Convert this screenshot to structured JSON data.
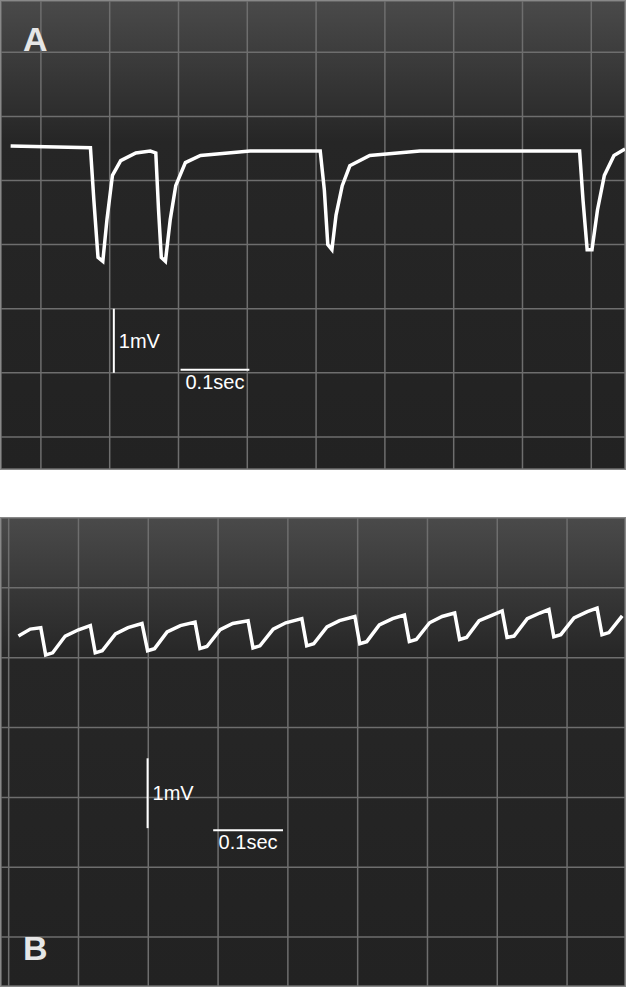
{
  "chart_data": [
    {
      "type": "line",
      "title": "A",
      "color": "#ffffff",
      "grid": true,
      "tick_labels": false,
      "x": [
        -0.044,
        0.072,
        0.077,
        0.083,
        0.09,
        0.096,
        0.104,
        0.116,
        0.138,
        0.159,
        0.167,
        0.171,
        0.175,
        0.181,
        0.188,
        0.196,
        0.21,
        0.232,
        0.304,
        0.406,
        0.412,
        0.417,
        0.423,
        0.429,
        0.438,
        0.449,
        0.478,
        0.551,
        0.783,
        0.788,
        0.794,
        0.801,
        0.809,
        0.819,
        0.833,
        0.849
      ],
      "values": [
        0.54,
        0.51,
        -0.31,
        -1.2,
        -1.26,
        -0.61,
        0.08,
        0.31,
        0.43,
        0.46,
        0.43,
        -0.46,
        -1.2,
        -1.26,
        -0.61,
        -0.08,
        0.28,
        0.39,
        0.46,
        0.46,
        -0.15,
        -1.0,
        -1.08,
        -0.54,
        -0.08,
        0.23,
        0.39,
        0.46,
        0.46,
        -0.31,
        -1.08,
        -1.08,
        -0.46,
        0.08,
        0.39,
        0.49
      ],
      "xlim": [
        -0.058,
        0.849
      ],
      "ylim": [
        -4.5,
        2.8
      ],
      "xticks": [
        0,
        0.1,
        0.2,
        0.3,
        0.4,
        0.5,
        0.6,
        0.7,
        0.8
      ],
      "yticks": [
        -4,
        -3,
        -2,
        -1,
        0,
        1,
        2
      ],
      "scale_bars": [
        {
          "label": "1mV",
          "axis": "y",
          "length": 1,
          "x": 0.106,
          "y": -3.0
        },
        {
          "label": "0.1sec",
          "axis": "x",
          "length": 0.1,
          "x": 0.203,
          "y": -2.95
        }
      ]
    },
    {
      "type": "line",
      "title": "B",
      "color": "#ffffff",
      "grid": true,
      "tick_labels": false,
      "x": [
        0.014,
        0.031,
        0.046,
        0.053,
        0.063,
        0.081,
        0.1,
        0.117,
        0.124,
        0.134,
        0.153,
        0.171,
        0.191,
        0.199,
        0.209,
        0.227,
        0.246,
        0.267,
        0.274,
        0.284,
        0.303,
        0.321,
        0.343,
        0.35,
        0.36,
        0.379,
        0.397,
        0.42,
        0.427,
        0.437,
        0.456,
        0.474,
        0.496,
        0.503,
        0.513,
        0.531,
        0.55,
        0.567,
        0.574,
        0.584,
        0.603,
        0.621,
        0.639,
        0.646,
        0.656,
        0.674,
        0.693,
        0.707,
        0.714,
        0.724,
        0.743,
        0.761,
        0.774,
        0.781,
        0.791,
        0.81,
        0.829,
        0.843,
        0.85,
        0.86,
        0.879
      ],
      "values": [
        0.31,
        0.41,
        0.43,
        0.04,
        0.07,
        0.31,
        0.4,
        0.46,
        0.07,
        0.1,
        0.34,
        0.43,
        0.49,
        0.1,
        0.13,
        0.37,
        0.46,
        0.51,
        0.13,
        0.16,
        0.4,
        0.49,
        0.53,
        0.14,
        0.17,
        0.41,
        0.5,
        0.56,
        0.17,
        0.2,
        0.44,
        0.53,
        0.59,
        0.2,
        0.23,
        0.47,
        0.56,
        0.61,
        0.23,
        0.26,
        0.5,
        0.59,
        0.64,
        0.26,
        0.29,
        0.53,
        0.61,
        0.67,
        0.29,
        0.31,
        0.56,
        0.64,
        0.69,
        0.3,
        0.33,
        0.57,
        0.66,
        0.71,
        0.33,
        0.36,
        0.6
      ],
      "xlim": [
        -0.011,
        0.883
      ],
      "ylim": [
        -4.7,
        2.0
      ],
      "xticks": [
        0,
        0.1,
        0.2,
        0.3,
        0.4,
        0.5,
        0.6,
        0.7,
        0.8
      ],
      "yticks": [
        -4,
        -3,
        -2,
        -1,
        0,
        1,
        2
      ],
      "scale_bars": [
        {
          "label": "1mV",
          "axis": "y",
          "length": 1,
          "x": 0.199,
          "y": -2.44
        },
        {
          "label": "0.1sec",
          "axis": "x",
          "length": 0.1,
          "x": 0.293,
          "y": -2.47
        }
      ]
    }
  ]
}
